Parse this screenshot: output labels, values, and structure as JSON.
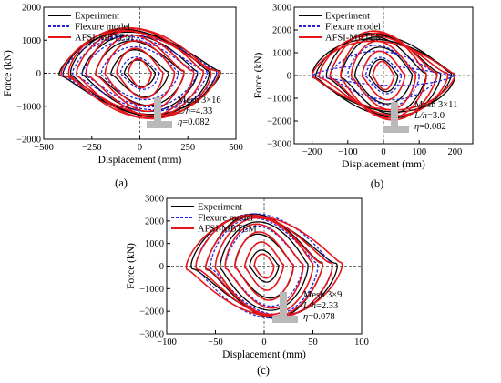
{
  "colors": {
    "experiment": "#000000",
    "flexure": "#2323e0",
    "afsi": "#e8161a",
    "section_icon": "#b9b9b9"
  },
  "chart_data": [
    {
      "type": "line",
      "panel_label": "(a)",
      "xlabel": "Displacement (mm)",
      "ylabel": "Force (kN)",
      "xlim": [
        -500,
        500
      ],
      "ylim": [
        -2000,
        2000
      ],
      "xticks": [
        -500,
        -250,
        0,
        250,
        500
      ],
      "yticks": [
        -2000,
        -1000,
        0,
        1000,
        2000
      ],
      "xtick_labels": [
        "−500",
        "−250",
        "0",
        "250",
        "500"
      ],
      "ytick_labels": [
        "−2000",
        "−1000",
        "0",
        "1000",
        "2000"
      ],
      "legend": {
        "placement": "top-left",
        "entries": [
          "Experiment",
          "Flexure model",
          "AFSI-MBTEM"
        ]
      },
      "annotation": {
        "line1": "Mesh 3×16",
        "line2_var": "L/h",
        "line2_val": "=4.33",
        "line3_var": "η",
        "line3_val": "=0.082"
      },
      "series": [
        {
          "name": "Experiment",
          "style": "solid",
          "amplitudes": [
            80,
            150,
            230,
            300,
            360,
            400,
            420
          ],
          "peaks": [
            450,
            800,
            1100,
            1300,
            1450,
            1500,
            1400
          ]
        },
        {
          "name": "Flexure model",
          "style": "dashed",
          "amplitudes": [
            100,
            200,
            300,
            350,
            400
          ],
          "peaks": [
            550,
            900,
            1150,
            1250,
            1300
          ]
        },
        {
          "name": "AFSI-MBTEM",
          "style": "solid",
          "amplitudes": [
            60,
            120,
            180,
            230,
            280,
            330,
            370,
            410
          ],
          "peaks": [
            500,
            850,
            1100,
            1300,
            1450,
            1520,
            1550,
            1450
          ]
        }
      ]
    },
    {
      "type": "line",
      "panel_label": "(b)",
      "xlabel": "Displacement (mm)",
      "ylabel": "Force (kN)",
      "xlim": [
        -250,
        250
      ],
      "ylim": [
        -3000,
        3000
      ],
      "xticks": [
        -200,
        -100,
        0,
        100,
        200
      ],
      "yticks": [
        -3000,
        -2000,
        -1000,
        0,
        1000,
        2000,
        3000
      ],
      "xtick_labels": [
        "−200",
        "−100",
        "0",
        "100",
        "200"
      ],
      "ytick_labels": [
        "−3000",
        "−2000",
        "−1000",
        "0",
        "1000",
        "2000",
        "3000"
      ],
      "legend": {
        "placement": "top-left",
        "entries": [
          "Experiment",
          "Flexure model",
          "AFSI-MBTEM"
        ]
      },
      "annotation": {
        "line1": "Mesh 3×11",
        "line2_var": "L/h",
        "line2_val": "=3.0",
        "line3_var": "η",
        "line3_val": "=0.082"
      },
      "series": [
        {
          "name": "Experiment",
          "style": "solid",
          "amplitudes": [
            40,
            80,
            120,
            160,
            190,
            200
          ],
          "peaks": [
            800,
            1400,
            1900,
            2100,
            2000,
            1800
          ]
        },
        {
          "name": "Flexure model",
          "style": "dashed",
          "amplitudes": [
            50,
            100,
            150,
            200
          ],
          "peaks": [
            900,
            1500,
            1200,
            500
          ]
        },
        {
          "name": "AFSI-MBTEM",
          "style": "solid",
          "amplitudes": [
            30,
            60,
            90,
            120,
            150,
            180,
            200
          ],
          "peaks": [
            700,
            1200,
            1700,
            2100,
            2200,
            2000,
            1700
          ]
        }
      ]
    },
    {
      "type": "line",
      "panel_label": "(c)",
      "xlabel": "Displacement (mm)",
      "ylabel": "Force (kN)",
      "xlim": [
        -100,
        100
      ],
      "ylim": [
        -3000,
        3000
      ],
      "xticks": [
        -100,
        -50,
        0,
        50,
        100
      ],
      "yticks": [
        -3000,
        -2000,
        -1000,
        0,
        1000,
        2000,
        3000
      ],
      "xtick_labels": [
        "−100",
        "−50",
        "0",
        "50",
        "100"
      ],
      "ytick_labels": [
        "−3000",
        "−2000",
        "−1000",
        "0",
        "1000",
        "2000",
        "3000"
      ],
      "legend": {
        "placement": "top-left",
        "entries": [
          "Experiment",
          "Flexure model",
          "AFSI-MBTEM"
        ]
      },
      "annotation": {
        "line1": "Mesh 3×9",
        "line2_var": "L/h",
        "line2_val": "=2.33",
        "line3_var": "η",
        "line3_val": "=0.078"
      },
      "series": [
        {
          "name": "Experiment",
          "style": "solid",
          "amplitudes": [
            15,
            30,
            45,
            60,
            75
          ],
          "peaks": [
            800,
            1600,
            2200,
            2600,
            2500
          ]
        },
        {
          "name": "Flexure model",
          "style": "dashed",
          "amplitudes": [
            20,
            40,
            55,
            70
          ],
          "peaks": [
            1200,
            2000,
            2400,
            2600
          ]
        },
        {
          "name": "AFSI-MBTEM",
          "style": "solid",
          "amplitudes": [
            10,
            20,
            30,
            40,
            50,
            60,
            70,
            80
          ],
          "peaks": [
            600,
            1200,
            1700,
            2100,
            2400,
            2500,
            2550,
            2500
          ]
        }
      ]
    }
  ]
}
